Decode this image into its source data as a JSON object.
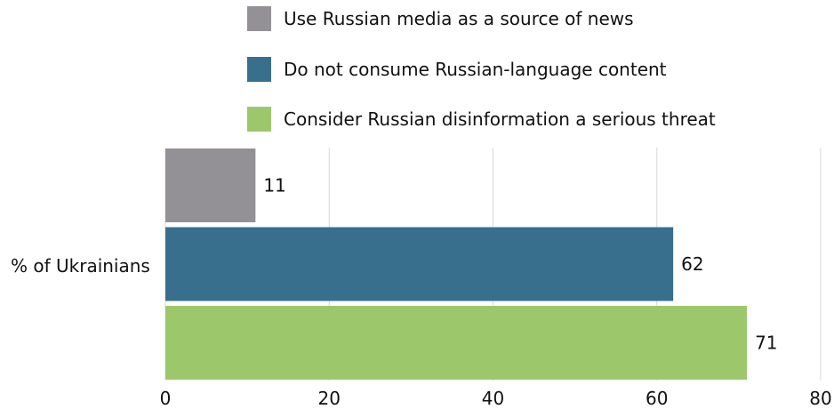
{
  "chart_data": {
    "type": "bar",
    "orientation": "horizontal",
    "categories": [
      "% of Ukrainians"
    ],
    "series": [
      {
        "name": "Use Russian media as a source of news",
        "values": [
          11
        ],
        "color": "#939196"
      },
      {
        "name": "Do not consume Russian-language content",
        "values": [
          62
        ],
        "color": "#386F8D"
      },
      {
        "name": "Consider Russian disinformation a serious threat",
        "values": [
          71
        ],
        "color": "#9CC86B"
      }
    ],
    "xlim": [
      0,
      80
    ],
    "xticks": [
      "0",
      "20",
      "40",
      "60",
      "80"
    ],
    "xlabel": "",
    "ylabel": "",
    "title": "",
    "grid": true,
    "legend_position": "top"
  }
}
